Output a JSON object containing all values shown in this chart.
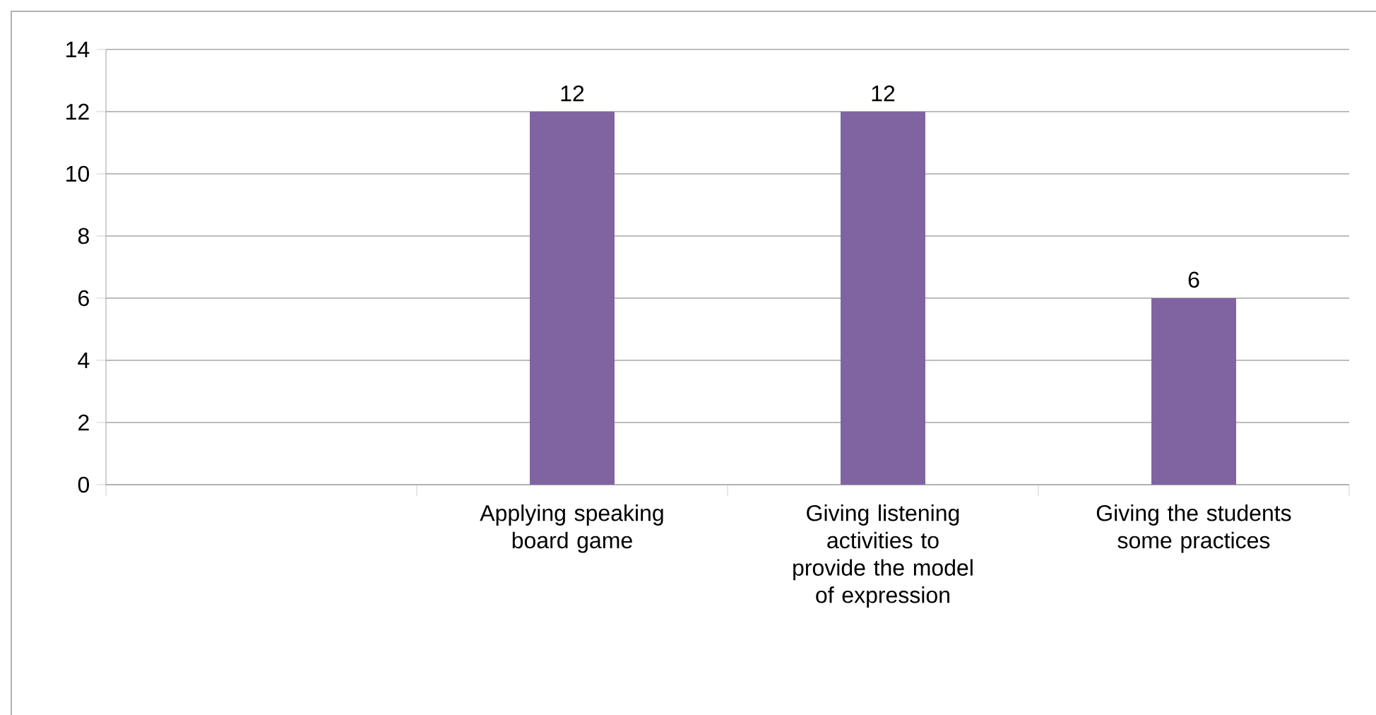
{
  "chart_data": {
    "type": "bar",
    "categories": [
      null,
      "Applying speaking board game",
      "Giving listening activities to provide the model of expression",
      "Giving the students some practices"
    ],
    "values": [
      null,
      12,
      12,
      6
    ],
    "color": "#8064a2",
    "ylim": [
      0,
      14
    ],
    "yticks": [
      0,
      2,
      4,
      6,
      8,
      10,
      12,
      14
    ],
    "grid": "y",
    "data_labels": true
  }
}
